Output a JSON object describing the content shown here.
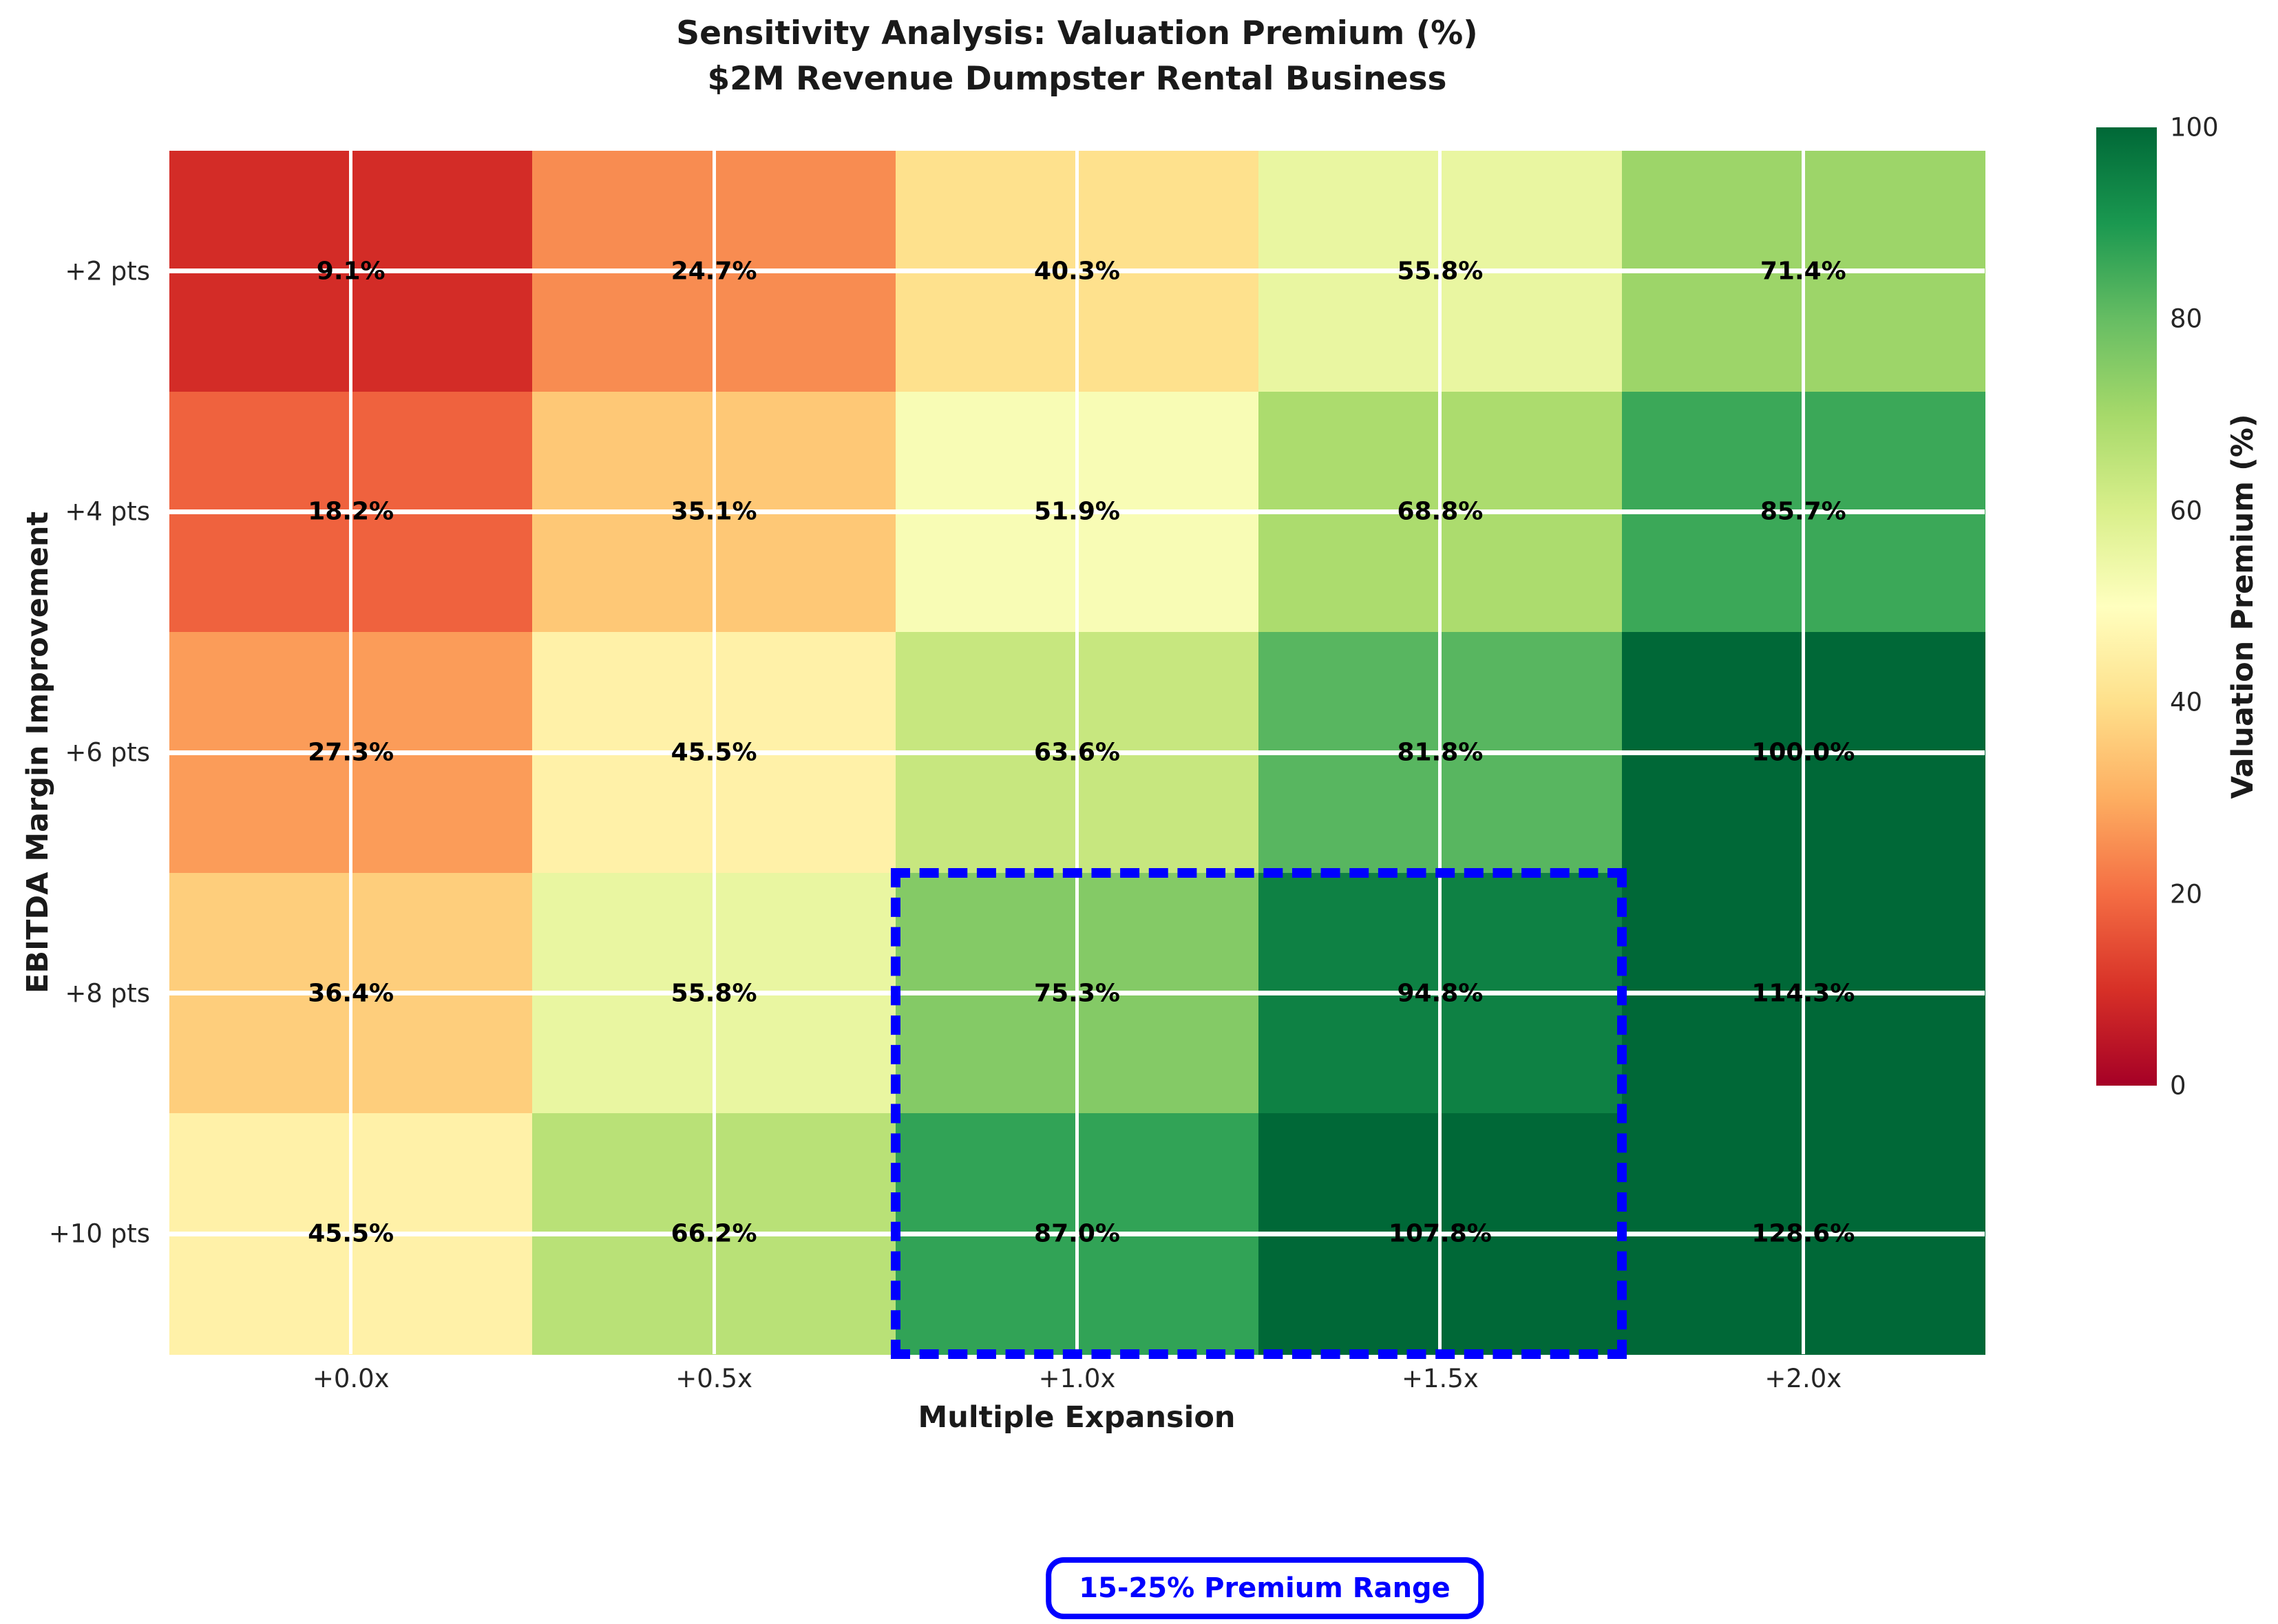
{
  "figure": {
    "title_line1": "Sensitivity Analysis: Valuation Premium (%)",
    "title_line2": "$2M Revenue Dumpster Rental Business"
  },
  "chart_data": {
    "type": "heatmap",
    "title": "Sensitivity Analysis: Valuation Premium (%)",
    "subtitle": "$2M Revenue Dumpster Rental Business",
    "xlabel": "Multiple Expansion",
    "ylabel": "EBITDA Margin Improvement",
    "x_categories": [
      "+0.0x",
      "+0.5x",
      "+1.0x",
      "+1.5x",
      "+2.0x"
    ],
    "y_categories": [
      "+2 pts",
      "+4 pts",
      "+6 pts",
      "+8 pts",
      "+10 pts"
    ],
    "values": [
      [
        9.1,
        24.7,
        40.3,
        55.8,
        71.4
      ],
      [
        18.2,
        35.1,
        51.9,
        68.8,
        85.7
      ],
      [
        27.3,
        45.5,
        63.6,
        81.8,
        100.0
      ],
      [
        36.4,
        55.8,
        75.3,
        94.8,
        114.3
      ],
      [
        45.5,
        66.2,
        87.0,
        107.8,
        128.6
      ]
    ],
    "cell_labels": [
      [
        "9.1%",
        "24.7%",
        "40.3%",
        "55.8%",
        "71.4%"
      ],
      [
        "18.2%",
        "35.1%",
        "51.9%",
        "68.8%",
        "85.7%"
      ],
      [
        "27.3%",
        "45.5%",
        "63.6%",
        "81.8%",
        "100.0%"
      ],
      [
        "36.4%",
        "55.8%",
        "75.3%",
        "94.8%",
        "114.3%"
      ],
      [
        "45.5%",
        "66.2%",
        "87.0%",
        "107.8%",
        "128.6%"
      ]
    ],
    "grid": "white gridlines through cell centers",
    "legend_position": "none",
    "colorbar": {
      "label": "Valuation Premium (%)",
      "ticks": [
        "0",
        "20",
        "40",
        "60",
        "80",
        "100"
      ],
      "tick_values": [
        0,
        20,
        40,
        60,
        80,
        100
      ],
      "vmin": 0,
      "vmax": 100,
      "position": "right"
    },
    "colormap": {
      "name": "RdYlGn",
      "stops": [
        "#a50026",
        "#d73027",
        "#f46d43",
        "#fdae61",
        "#fee08b",
        "#ffffbf",
        "#d9ef8b",
        "#a6d96a",
        "#66bd63",
        "#1a9850",
        "#006837"
      ]
    },
    "highlight_box": {
      "x_categories_covered": [
        "+1.0x",
        "+1.5x"
      ],
      "y_categories_covered": [
        "+8 pts",
        "+10 pts"
      ],
      "col_start": 2,
      "col_span": 2,
      "row_start": 3,
      "row_span": 2,
      "color": "#0000ff",
      "line_style": "dashed"
    },
    "annotation": {
      "text": "15-25% Premium Range",
      "color": "#0000ff"
    }
  }
}
